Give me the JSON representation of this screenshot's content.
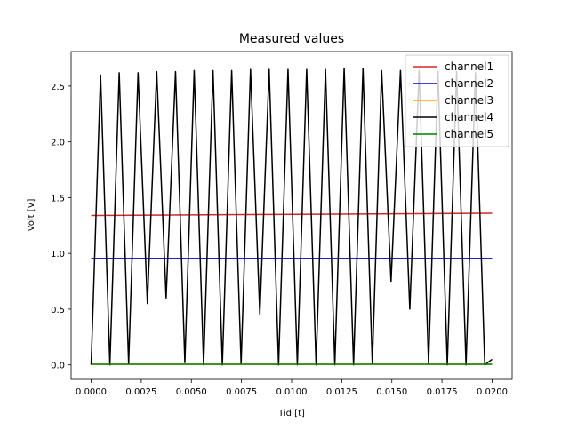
{
  "chart_data": {
    "type": "line",
    "title": "Measured values",
    "x_label": "Tid [t]",
    "y_label": "Volt [V]",
    "xlim": [
      -0.001,
      0.021
    ],
    "ylim": [
      -0.13,
      2.81
    ],
    "xticks": [
      {
        "value": 0,
        "label": "0.0000"
      },
      {
        "value": 0.0025,
        "label": "0.0025"
      },
      {
        "value": 0.005,
        "label": "0.0050"
      },
      {
        "value": 0.0075,
        "label": "0.0075"
      },
      {
        "value": 0.01,
        "label": "0.0100"
      },
      {
        "value": 0.0125,
        "label": "0.0125"
      },
      {
        "value": 0.015,
        "label": "0.0150"
      },
      {
        "value": 0.0175,
        "label": "0.0175"
      },
      {
        "value": 0.02,
        "label": "0.0200"
      }
    ],
    "yticks": [
      {
        "value": 0,
        "label": "0.0"
      },
      {
        "value": 0.5,
        "label": "0.5"
      },
      {
        "value": 1,
        "label": "1.0"
      },
      {
        "value": 1.5,
        "label": "1.5"
      },
      {
        "value": 2,
        "label": "2.0"
      },
      {
        "value": 2.5,
        "label": "2.5"
      }
    ],
    "grid": false,
    "legend": "upper right",
    "series": [
      {
        "name": "channel1",
        "color": "#d62728",
        "x": [
          0,
          0.02
        ],
        "values": [
          1.34,
          1.36
        ]
      },
      {
        "name": "channel2",
        "color": "#0000cc",
        "x": [
          0,
          0.02
        ],
        "values": [
          0.955,
          0.955
        ]
      },
      {
        "name": "channel3",
        "color": "#ffa500",
        "x": [
          0,
          0.02
        ],
        "values": [
          0.005,
          0.005
        ]
      },
      {
        "name": "channel4",
        "color": "#000000",
        "x": [
          0,
          0.00047,
          0.000935,
          0.0014,
          0.00187,
          0.00234,
          0.002805,
          0.00327,
          0.00374,
          0.00421,
          0.004675,
          0.00514,
          0.00561,
          0.00608,
          0.006545,
          0.00701,
          0.00748,
          0.00795,
          0.008415,
          0.00888,
          0.00935,
          0.00982,
          0.010285,
          0.01075,
          0.01122,
          0.01169,
          0.012155,
          0.01262,
          0.01309,
          0.01356,
          0.014025,
          0.01449,
          0.01496,
          0.01543,
          0.015895,
          0.01636,
          0.01683,
          0.0173,
          0.017765,
          0.01823,
          0.0187,
          0.01917,
          0.019635,
          0.02
        ],
        "values": [
          0,
          2.6,
          0,
          2.62,
          0.01,
          2.62,
          0.55,
          2.63,
          0.6,
          2.63,
          0.02,
          2.64,
          0,
          2.64,
          0,
          2.64,
          0.01,
          2.65,
          0.45,
          2.65,
          0,
          2.65,
          0,
          2.65,
          0,
          2.65,
          0,
          2.66,
          0,
          2.66,
          0.01,
          2.64,
          0.75,
          2.64,
          0.5,
          2.64,
          0.01,
          2.63,
          0,
          2.63,
          0,
          2.62,
          0,
          0.05
        ]
      },
      {
        "name": "channel5",
        "color": "#008000",
        "x": [
          0,
          0.02
        ],
        "values": [
          0.005,
          0.005
        ]
      }
    ]
  }
}
